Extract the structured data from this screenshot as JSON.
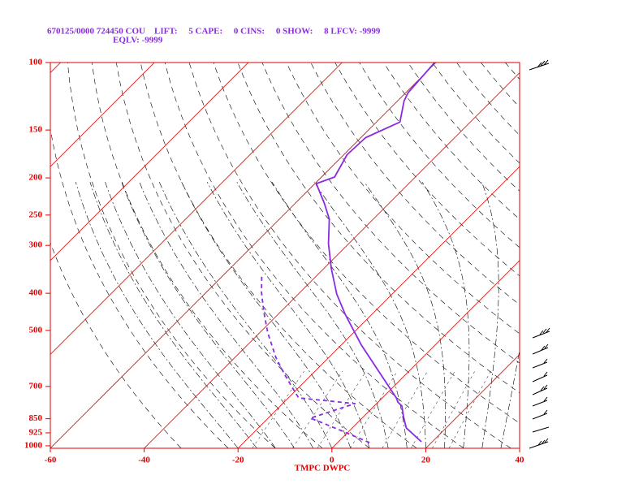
{
  "chart_data": {
    "type": "skewt",
    "header": [
      "670125/0000 724450 COU    LIFT:     5 CAPE:     0 CINS:     0 SHOW:     8 LFCV: -9999",
      "EQLV: -9999"
    ],
    "xlabel": "TMPC DWPC",
    "xlim": [
      -60,
      40
    ],
    "xticks": [
      -60,
      -40,
      -20,
      0,
      20,
      40
    ],
    "ylim": [
      1015,
      100
    ],
    "yticks": [
      100,
      150,
      200,
      250,
      300,
      400,
      500,
      700,
      850,
      925,
      1000
    ],
    "log_y": true,
    "isotherm_step": 20,
    "frame_color": "#e00000",
    "series": [
      {
        "color": "#8a2be2",
        "dash": false,
        "p": [
          976,
          898,
          839,
          787,
          769,
          750,
          632,
          546,
          454,
          402,
          344,
          297,
          256,
          233,
          207,
          199,
          174,
          157,
          143,
          126,
          120,
          100
        ],
        "values": [
          17.7,
          11.5,
          8.5,
          5.9,
          4.2,
          3.0,
          -7.1,
          -15.7,
          -25.7,
          -31.8,
          -38.5,
          -44.3,
          -49.4,
          -53.8,
          -59.7,
          -57.2,
          -59.3,
          -59.0,
          -55.0,
          -58.6,
          -59.5,
          -60.3
        ]
      },
      {
        "color": "#8a2be2",
        "dash": true,
        "p": [
          981,
          912,
          868,
          847,
          776,
          750,
          707,
          648,
          588,
          508,
          449,
          398,
          357
        ],
        "values": [
          6.8,
          -1.9,
          -7.9,
          -11.0,
          -4.6,
          -17.8,
          -21.2,
          -26.1,
          -31.3,
          -38.2,
          -43.4,
          -48.2,
          -52.0
        ]
      }
    ]
  }
}
